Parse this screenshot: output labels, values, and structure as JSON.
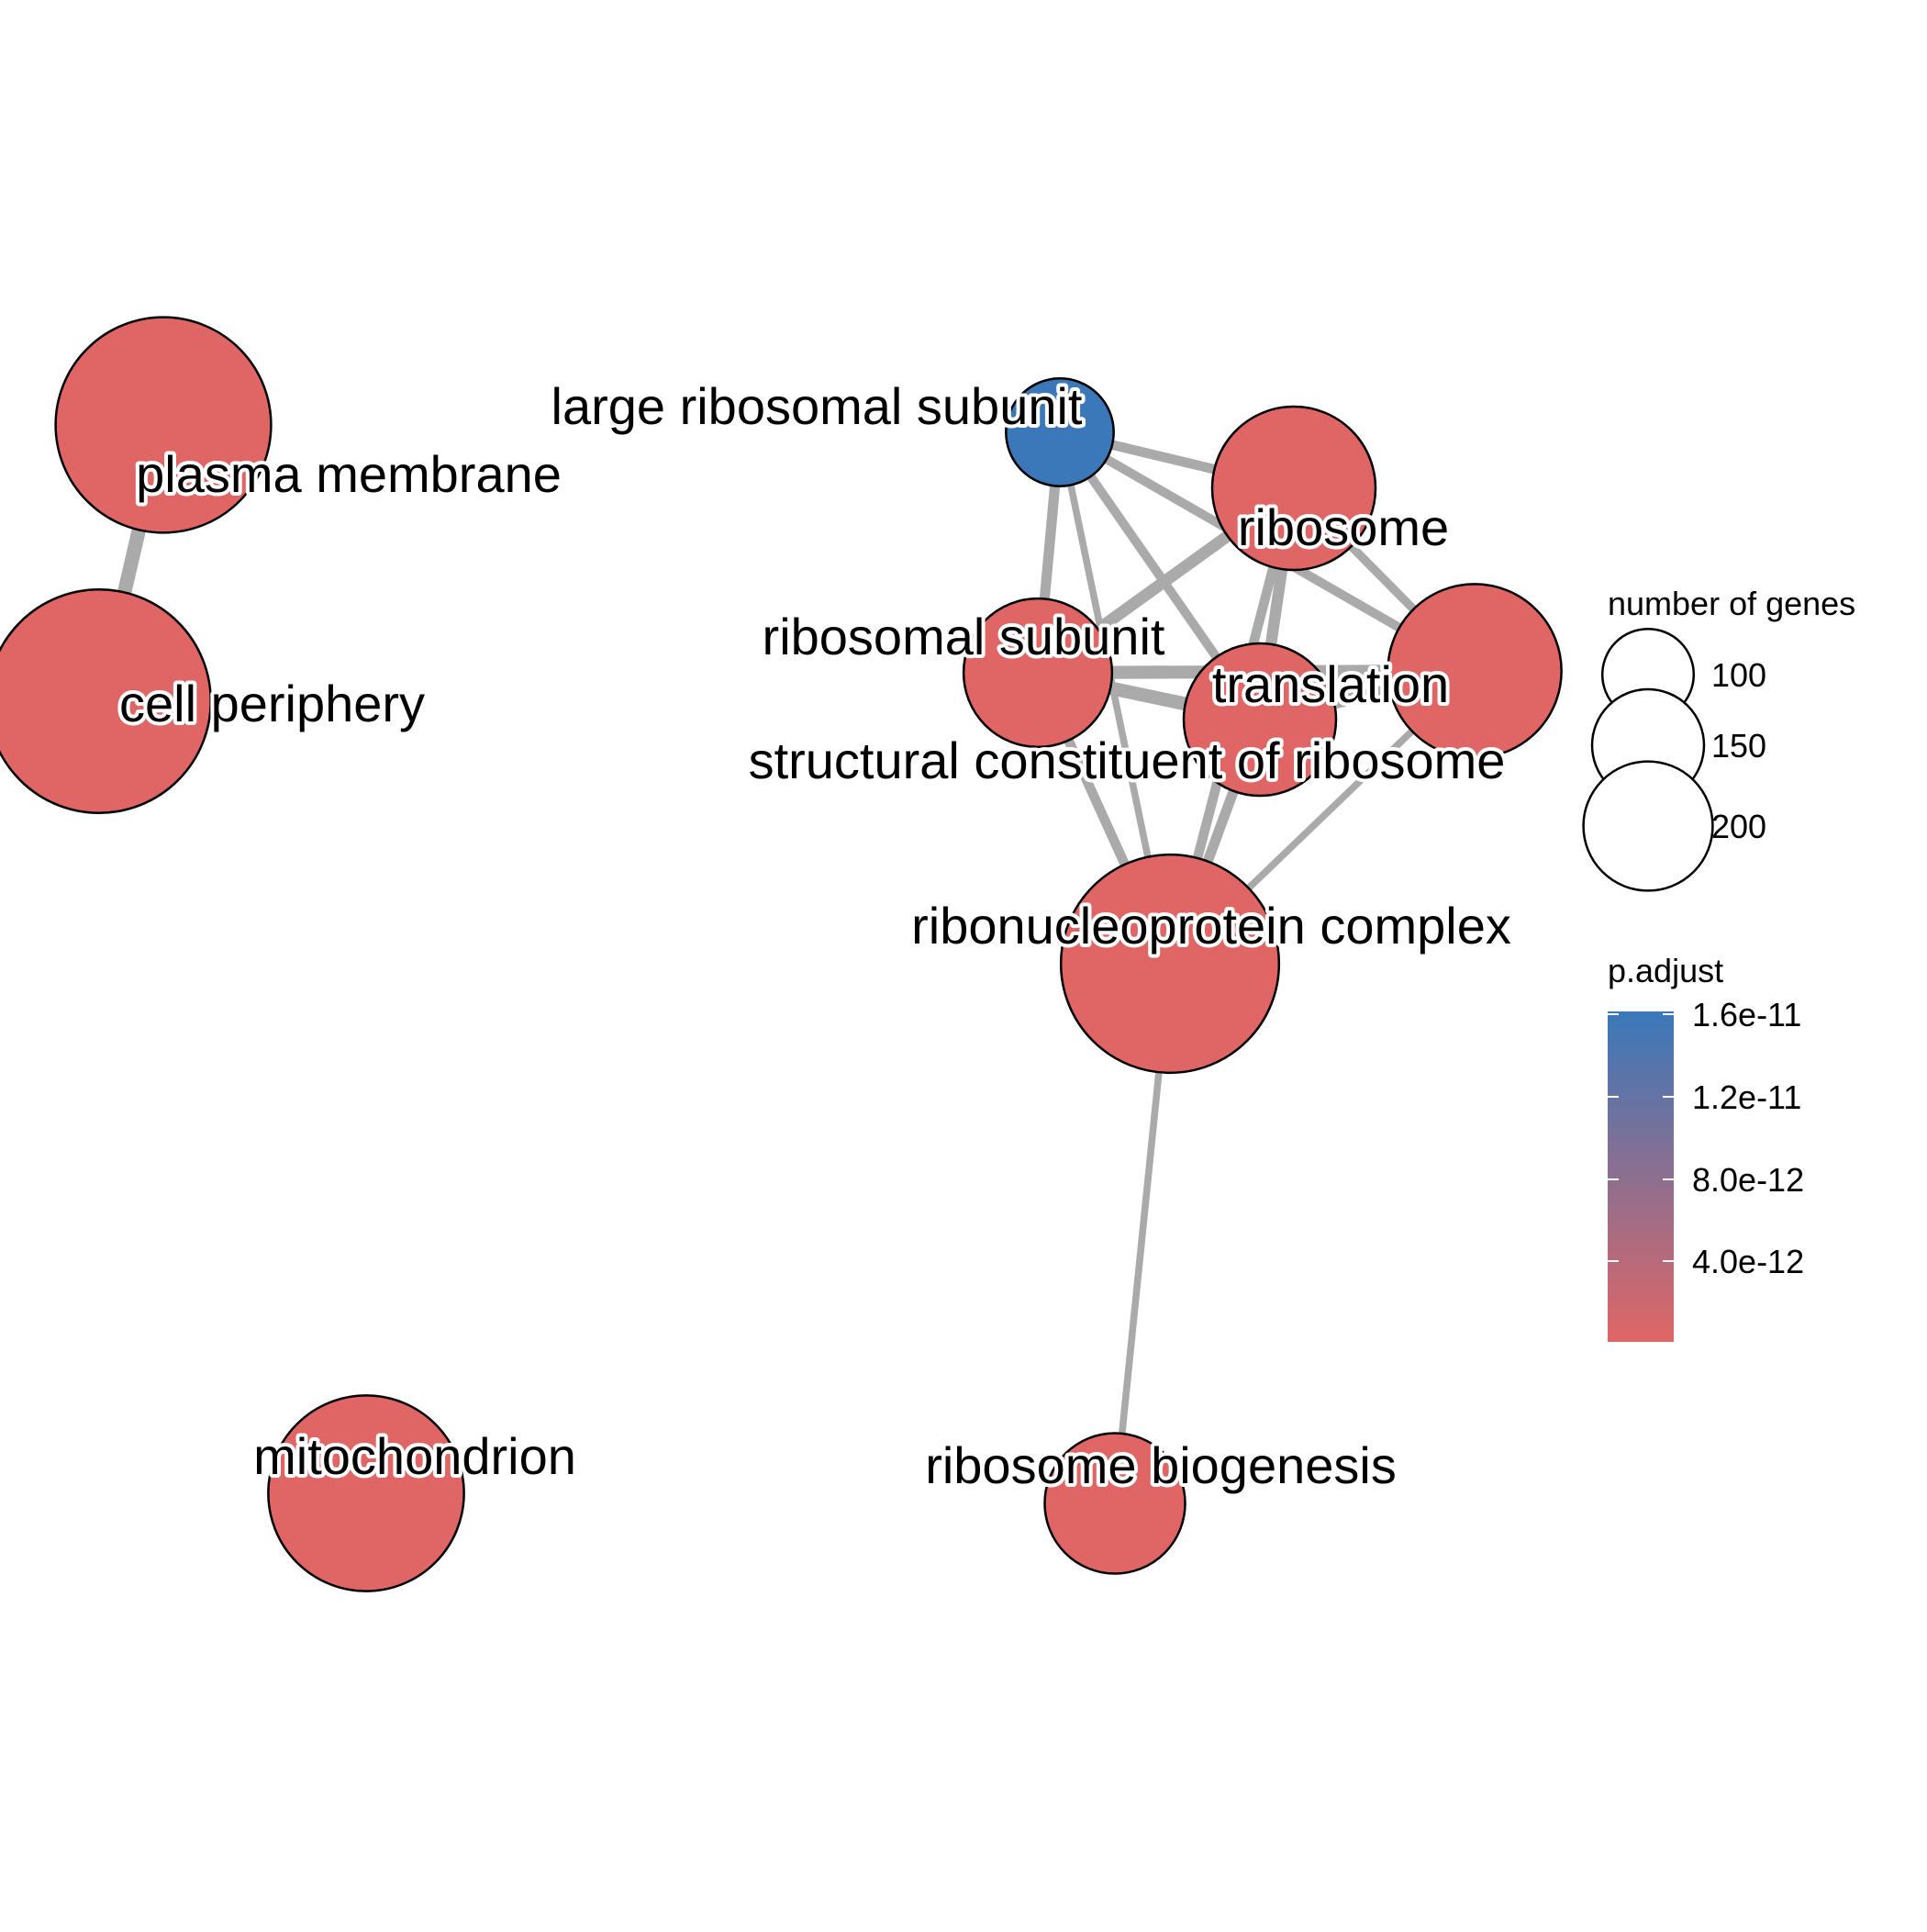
{
  "colors": {
    "low": "#E06666",
    "high": "#3A78B9",
    "edge": "#AAAAAA"
  },
  "nodes": [
    {
      "id": "plasma-membrane",
      "label": "plasma membrane",
      "color": "#E06666",
      "genes": 200
    },
    {
      "id": "cell-periphery",
      "label": "cell periphery",
      "color": "#E06666",
      "genes": 215
    },
    {
      "id": "large-ribosomal-subunit",
      "label": "large ribosomal subunit",
      "color": "#3A78B9",
      "genes": 50
    },
    {
      "id": "ribosome",
      "label": "ribosome",
      "color": "#E06666",
      "genes": 115
    },
    {
      "id": "ribosomal-subunit",
      "label": "ribosomal subunit",
      "color": "#E06666",
      "genes": 95
    },
    {
      "id": "translation",
      "label": "translation",
      "color": "#E06666",
      "genes": 130
    },
    {
      "id": "structural-constituent",
      "label": "structural constituent of ribosome",
      "color": "#E06666",
      "genes": 100
    },
    {
      "id": "ribonucleoprotein-complex",
      "label": "ribonucleoprotein complex",
      "color": "#E06666",
      "genes": 205
    },
    {
      "id": "ribosome-biogenesis",
      "label": "ribosome biogenesis",
      "color": "#E06666",
      "genes": 85
    },
    {
      "id": "mitochondrion",
      "label": "mitochondrion",
      "color": "#E06666",
      "genes": 165
    }
  ],
  "edges": [
    {
      "source": "plasma-membrane",
      "target": "cell-periphery",
      "weight": 0.95
    },
    {
      "source": "large-ribosomal-subunit",
      "target": "ribosome",
      "weight": 0.55
    },
    {
      "source": "large-ribosomal-subunit",
      "target": "ribosomal-subunit",
      "weight": 0.6
    },
    {
      "source": "large-ribosomal-subunit",
      "target": "translation",
      "weight": 0.5
    },
    {
      "source": "large-ribosomal-subunit",
      "target": "structural-constituent",
      "weight": 0.5
    },
    {
      "source": "large-ribosomal-subunit",
      "target": "ribonucleoprotein-complex",
      "weight": 0.3
    },
    {
      "source": "ribosome",
      "target": "ribosomal-subunit",
      "weight": 0.75
    },
    {
      "source": "ribosome",
      "target": "translation",
      "weight": 0.45
    },
    {
      "source": "ribosome",
      "target": "structural-constituent",
      "weight": 0.7
    },
    {
      "source": "ribosome",
      "target": "ribonucleoprotein-complex",
      "weight": 0.55
    },
    {
      "source": "ribosomal-subunit",
      "target": "translation",
      "weight": 0.85
    },
    {
      "source": "ribosomal-subunit",
      "target": "structural-constituent",
      "weight": 0.9
    },
    {
      "source": "ribosomal-subunit",
      "target": "ribonucleoprotein-complex",
      "weight": 0.55
    },
    {
      "source": "translation",
      "target": "structural-constituent",
      "weight": 0.8
    },
    {
      "source": "translation",
      "target": "ribonucleoprotein-complex",
      "weight": 0.3
    },
    {
      "source": "structural-constituent",
      "target": "ribonucleoprotein-complex",
      "weight": 0.6
    },
    {
      "source": "ribonucleoprotein-complex",
      "target": "ribosome-biogenesis",
      "weight": 0.3
    }
  ],
  "legend": {
    "size_title": "number of genes",
    "size_items": [
      {
        "label": "100",
        "genes": 100
      },
      {
        "label": "150",
        "genes": 150
      },
      {
        "label": "200",
        "genes": 200
      }
    ],
    "color_title": "p.adjust",
    "color_ticks": [
      {
        "label": "1.6e-11",
        "value": 1.6e-11
      },
      {
        "label": "1.2e-11",
        "value": 1.2e-11
      },
      {
        "label": "8.0e-12",
        "value": 8e-12
      },
      {
        "label": "4.0e-12",
        "value": 4e-12
      }
    ]
  }
}
